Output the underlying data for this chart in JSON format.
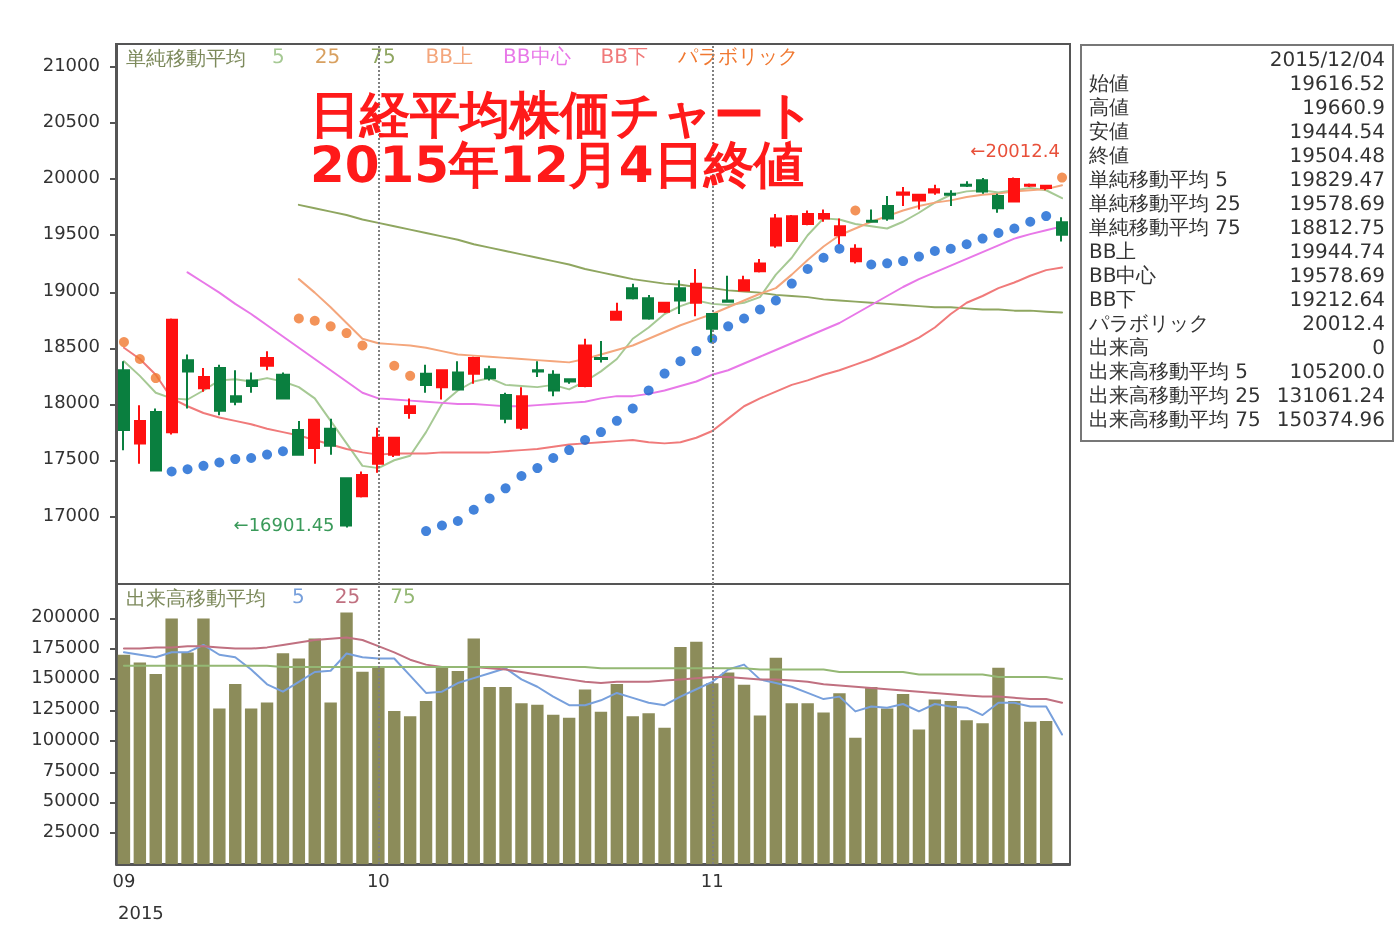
{
  "chart_data": [
    {
      "type": "candlestick",
      "title": "日経平均株価チャート",
      "subtitle": "2015年12月4日終値",
      "legend_title": "単純移動平均",
      "legend": "top left",
      "marker": "none",
      "tick_labels": "y",
      "categories": [
        "09",
        null,
        null,
        null,
        null,
        null,
        null,
        null,
        null,
        null,
        null,
        null,
        null,
        null,
        null,
        null,
        "10",
        null,
        null,
        null,
        null,
        null,
        null,
        null,
        null,
        null,
        null,
        null,
        null,
        null,
        null,
        null,
        null,
        null,
        null,
        null,
        null,
        "11",
        null,
        null,
        null,
        null,
        null,
        null,
        null,
        null,
        null,
        null,
        null,
        null,
        null,
        null,
        null,
        null,
        null,
        null,
        null,
        null,
        null,
        null
      ],
      "ohlc": [
        [
          18300,
          18380,
          17590,
          17770
        ],
        [
          17650,
          17990,
          17470,
          17850
        ],
        [
          17930,
          17960,
          17400,
          17410
        ],
        [
          17750,
          18760,
          17730,
          18750
        ],
        [
          18390,
          18440,
          17960,
          18290
        ],
        [
          18140,
          18320,
          18110,
          18240
        ],
        [
          18320,
          18350,
          17900,
          17940
        ],
        [
          18070,
          18300,
          17990,
          18020
        ],
        [
          18210,
          18280,
          18100,
          18160
        ],
        [
          18340,
          18470,
          18300,
          18410
        ],
        [
          18260,
          18280,
          18040,
          18050
        ],
        [
          17770,
          17850,
          17540,
          17550
        ],
        [
          17610,
          17870,
          17470,
          17860
        ],
        [
          17780,
          17870,
          17550,
          17630
        ],
        [
          17340,
          17350,
          16901.45,
          16920
        ],
        [
          17180,
          17400,
          17170,
          17370
        ],
        [
          17470,
          17790,
          17390,
          17700
        ],
        [
          17550,
          17710,
          17530,
          17700
        ],
        [
          17920,
          18050,
          17870,
          17980
        ],
        [
          18270,
          18350,
          18100,
          18170
        ],
        [
          18150,
          18310,
          18040,
          18300
        ],
        [
          18280,
          18380,
          18120,
          18130
        ],
        [
          18270,
          18420,
          18180,
          18410
        ],
        [
          18310,
          18340,
          18210,
          18230
        ],
        [
          18080,
          18100,
          17830,
          17870
        ],
        [
          17790,
          18150,
          17770,
          18070
        ],
        [
          18300,
          18380,
          18240,
          18290
        ],
        [
          18260,
          18300,
          18070,
          18120
        ],
        [
          18220,
          18230,
          18180,
          18200
        ],
        [
          18160,
          18580,
          18150,
          18520
        ],
        [
          18410,
          18560,
          18370,
          18400
        ],
        [
          18750,
          18900,
          18740,
          18820
        ],
        [
          19030,
          19070,
          18930,
          18940
        ],
        [
          18940,
          18970,
          18750,
          18760
        ],
        [
          18820,
          18900,
          18810,
          18900
        ],
        [
          19030,
          19100,
          18800,
          18920
        ],
        [
          18900,
          19200,
          18780,
          19070
        ],
        [
          18800,
          18800,
          18550,
          18670
        ],
        [
          18920,
          19140,
          18900,
          18910
        ],
        [
          19010,
          19140,
          19000,
          19100
        ],
        [
          19180,
          19290,
          19170,
          19250
        ],
        [
          19410,
          19690,
          19390,
          19650
        ],
        [
          19450,
          19680,
          19450,
          19670
        ],
        [
          19600,
          19720,
          19590,
          19690
        ],
        [
          19650,
          19730,
          19620,
          19690
        ],
        [
          19500,
          19650,
          19420,
          19580
        ],
        [
          19270,
          19420,
          19250,
          19380
        ],
        [
          19630,
          19730,
          19620,
          19620
        ],
        [
          19760,
          19850,
          19630,
          19650
        ],
        [
          19860,
          19930,
          19760,
          19880
        ],
        [
          19810,
          19870,
          19730,
          19860
        ],
        [
          19880,
          19950,
          19860,
          19910
        ],
        [
          19870,
          19900,
          19760,
          19860
        ],
        [
          19950,
          19980,
          19930,
          19940
        ],
        [
          19990,
          20010,
          19870,
          19890
        ],
        [
          19850,
          19870,
          19700,
          19740
        ],
        [
          19800,
          20012.4,
          19800,
          20000
        ],
        [
          19940,
          19960,
          19930,
          19950
        ],
        [
          19920,
          19950,
          19900,
          19940
        ],
        [
          19616.52,
          19660.9,
          19444.54,
          19504.48
        ]
      ],
      "colors": [
        "#0a7f3f",
        "#ff1010",
        "#0a7f3f",
        "#ff1010",
        "#0a7f3f",
        "#ff1010",
        "#0a7f3f",
        "#0a7f3f",
        "#0a7f3f",
        "#ff1010",
        "#0a7f3f",
        "#0a7f3f",
        "#ff1010",
        "#0a7f3f",
        "#0a7f3f",
        "#ff1010",
        "#ff1010",
        "#ff1010",
        "#ff1010",
        "#0a7f3f",
        "#ff1010",
        "#0a7f3f",
        "#ff1010",
        "#0a7f3f",
        "#0a7f3f",
        "#ff1010",
        "#0a7f3f",
        "#0a7f3f",
        "#0a7f3f",
        "#ff1010",
        "#0a7f3f",
        "#ff1010",
        "#0a7f3f",
        "#0a7f3f",
        "#ff1010",
        "#0a7f3f",
        "#ff1010",
        "#0a7f3f",
        "#0a7f3f",
        "#ff1010",
        "#ff1010",
        "#ff1010",
        "#ff1010",
        "#ff1010",
        "#ff1010",
        "#ff1010",
        "#ff1010",
        "#0a7f3f",
        "#0a7f3f",
        "#ff1010",
        "#ff1010",
        "#ff1010",
        "#0a7f3f",
        "#0a7f3f",
        "#0a7f3f",
        "#0a7f3f",
        "#ff1010",
        "#ff1010",
        "#ff1010",
        "#0a7f3f"
      ],
      "series": [
        {
          "type": "line",
          "name": "5",
          "color": "#a6c994",
          "values": [
            18380,
            18250,
            18100,
            18050,
            18040,
            18120,
            18210,
            18220,
            18200,
            18230,
            18200,
            18150,
            18050,
            17850,
            17650,
            17450,
            17430,
            17500,
            17540,
            17750,
            18000,
            18120,
            18200,
            18230,
            18170,
            18160,
            18150,
            18170,
            18130,
            18200,
            18290,
            18400,
            18580,
            18680,
            18800,
            18870,
            18920,
            18890,
            18880,
            18900,
            18950,
            19150,
            19300,
            19500,
            19650,
            19640,
            19600,
            19580,
            19560,
            19620,
            19700,
            19790,
            19860,
            19890,
            19900,
            19880,
            19900,
            19920,
            19900,
            19829.47
          ]
        },
        {
          "type": "line",
          "name": "25",
          "color": "#d8a060",
          "values": [
            null,
            null,
            null,
            null,
            null,
            null,
            null,
            null,
            null,
            null,
            null,
            null,
            null,
            null,
            null,
            null,
            null,
            null,
            null,
            null,
            null,
            null,
            null,
            null,
            null,
            null,
            null,
            null,
            null,
            null,
            null,
            null,
            null,
            null,
            null,
            null,
            null,
            null,
            null,
            null,
            null,
            null,
            null,
            null,
            null,
            null,
            null,
            null,
            null,
            null,
            null,
            null,
            null,
            null,
            null,
            null,
            null,
            null,
            null,
            null
          ]
        },
        {
          "type": "line",
          "name": "75",
          "color": "#8fa660",
          "values": [
            null,
            null,
            null,
            null,
            null,
            null,
            null,
            null,
            null,
            null,
            null,
            19770,
            19740,
            19710,
            19680,
            19640,
            19610,
            19580,
            19550,
            19520,
            19490,
            19460,
            19420,
            19390,
            19360,
            19330,
            19300,
            19270,
            19240,
            19200,
            19170,
            19140,
            19110,
            19090,
            19070,
            19060,
            19040,
            19030,
            19010,
            19000,
            18990,
            18970,
            18960,
            18950,
            18930,
            18920,
            18910,
            18900,
            18890,
            18880,
            18870,
            18860,
            18860,
            18850,
            18840,
            18840,
            18830,
            18830,
            18820,
            18812.75
          ]
        },
        {
          "type": "line",
          "name": "BB上",
          "color": "#f4a67c",
          "values": [
            null,
            null,
            null,
            null,
            null,
            null,
            null,
            null,
            null,
            null,
            null,
            19110,
            18990,
            18860,
            18720,
            18580,
            18540,
            18530,
            18520,
            18500,
            18470,
            18440,
            18430,
            18420,
            18410,
            18400,
            18390,
            18380,
            18370,
            18400,
            18440,
            18480,
            18520,
            18580,
            18640,
            18700,
            18750,
            18800,
            18860,
            18920,
            18980,
            19030,
            19150,
            19280,
            19400,
            19500,
            19560,
            19620,
            19670,
            19720,
            19760,
            19790,
            19810,
            19840,
            19860,
            19870,
            19890,
            19900,
            19910,
            19944.74
          ]
        },
        {
          "type": "line",
          "name": "BB中心",
          "color": "#e878e8",
          "values": [
            null,
            null,
            null,
            null,
            19170,
            19080,
            18990,
            18890,
            18800,
            18700,
            18600,
            18500,
            18400,
            18300,
            18200,
            18100,
            18050,
            18040,
            18030,
            18020,
            18010,
            18000,
            18000,
            17990,
            17980,
            17980,
            17990,
            18000,
            18010,
            18020,
            18050,
            18070,
            18070,
            18090,
            18120,
            18160,
            18200,
            18260,
            18300,
            18360,
            18420,
            18480,
            18540,
            18600,
            18660,
            18720,
            18800,
            18880,
            18960,
            19040,
            19110,
            19170,
            19230,
            19290,
            19350,
            19410,
            19470,
            19510,
            19545,
            19578.69
          ]
        },
        {
          "type": "line",
          "name": "BB下",
          "color": "#f07a7a",
          "values": [
            18500,
            18400,
            18260,
            18050,
            17980,
            17920,
            17880,
            17850,
            17820,
            17780,
            17750,
            17720,
            17680,
            17640,
            17600,
            17570,
            17550,
            17560,
            17560,
            17560,
            17570,
            17570,
            17570,
            17570,
            17580,
            17590,
            17600,
            17620,
            17640,
            17650,
            17660,
            17670,
            17680,
            17660,
            17650,
            17660,
            17700,
            17760,
            17870,
            17980,
            18050,
            18110,
            18170,
            18210,
            18260,
            18300,
            18350,
            18400,
            18460,
            18520,
            18590,
            18680,
            18800,
            18900,
            18960,
            19030,
            19080,
            19140,
            19190,
            19212.64
          ]
        },
        {
          "type": "scatter",
          "name": "パラボリック",
          "color": "#f07830",
          "marker": "circle",
          "values": [
            18550,
            18400,
            18230,
            17400,
            17420,
            17450,
            17480,
            17510,
            17520,
            17550,
            17580,
            18760,
            18740,
            18690,
            18630,
            18520,
            null,
            18340,
            18250,
            16870,
            16920,
            16960,
            17060,
            17160,
            17250,
            17360,
            17430,
            17520,
            17590,
            17680,
            17750,
            17850,
            17960,
            18120,
            18270,
            18380,
            18470,
            18580,
            18690,
            18760,
            18840,
            18920,
            19070,
            19200,
            19300,
            19380,
            19720,
            19240,
            19250,
            19270,
            19310,
            19360,
            19380,
            19420,
            19470,
            19520,
            19560,
            19620,
            19670,
            20012.4
          ],
          "colors": [
            "#f07830",
            "#f07830",
            "#f07830",
            "#1464d2",
            "#1464d2",
            "#1464d2",
            "#1464d2",
            "#1464d2",
            "#1464d2",
            "#1464d2",
            "#1464d2",
            "#f07830",
            "#f07830",
            "#f07830",
            "#f07830",
            "#f07830",
            "#f07830",
            "#f07830",
            "#f07830",
            "#1464d2",
            "#1464d2",
            "#1464d2",
            "#1464d2",
            "#1464d2",
            "#1464d2",
            "#1464d2",
            "#1464d2",
            "#1464d2",
            "#1464d2",
            "#1464d2",
            "#1464d2",
            "#1464d2",
            "#1464d2",
            "#1464d2",
            "#1464d2",
            "#1464d2",
            "#1464d2",
            "#1464d2",
            "#1464d2",
            "#1464d2",
            "#1464d2",
            "#1464d2",
            "#1464d2",
            "#1464d2",
            "#1464d2",
            "#1464d2",
            "#f07830",
            "#1464d2",
            "#1464d2",
            "#1464d2",
            "#1464d2",
            "#1464d2",
            "#1464d2",
            "#1464d2",
            "#1464d2",
            "#1464d2",
            "#1464d2",
            "#1464d2",
            "#1464d2",
            "#f07830"
          ]
        }
      ],
      "ylim": [
        16400,
        21200
      ],
      "yticks": [
        17000,
        17500,
        18000,
        18500,
        19000,
        19500,
        20000,
        20500,
        21000
      ],
      "ref_lines": [
        {
          "axis": "x",
          "value": "10",
          "color": "#808080",
          "line_style": "dotted"
        },
        {
          "axis": "x",
          "value": "11",
          "color": "#808080",
          "line_style": "dotted"
        }
      ],
      "annotations": [
        "2015/12/04",
        "始値",
        "19616.52",
        "高値",
        "19660.9",
        "安値",
        "19444.54",
        "終値",
        "19504.48",
        "単純移動平均 5",
        "19829.47",
        "単純移動平均 25",
        "19578.69",
        "単純移動平均 75",
        "18812.75",
        "BB上",
        "19944.74",
        "BB中心",
        "19578.69",
        "BB下",
        "19212.64",
        "パラボリック",
        "20012.4",
        "出来高",
        "0",
        "出来高移動平均 5",
        "105200.0",
        "出来高移動平均 25",
        "131061.24",
        "出来高移動平均 75",
        "150374.96",
        "←16901.45",
        "←20012.4"
      ]
    },
    {
      "type": "bar",
      "legend_title": "出来高移動平均",
      "legend": "top left",
      "xlabel": "2015",
      "categories": [
        "09",
        null,
        null,
        null,
        null,
        null,
        null,
        null,
        null,
        null,
        null,
        null,
        null,
        null,
        null,
        null,
        "10",
        null,
        null,
        null,
        null,
        null,
        null,
        null,
        null,
        null,
        null,
        null,
        null,
        null,
        null,
        null,
        null,
        null,
        null,
        null,
        null,
        "11",
        null,
        null,
        null,
        null,
        null,
        null,
        null,
        null,
        null,
        null,
        null,
        null,
        null,
        null,
        null,
        null,
        null,
        null,
        null,
        null,
        null,
        null
      ],
      "series": [
        {
          "color": "#8c8c5a",
          "values": [
            170000,
            163750,
            154375,
            199375,
            171875,
            199375,
            126250,
            146250,
            126250,
            131250,
            171250,
            166875,
            183125,
            131250,
            204375,
            156250,
            160000,
            124375,
            120000,
            132500,
            160625,
            156875,
            183125,
            143750,
            143750,
            130625,
            129375,
            121250,
            118750,
            141875,
            123750,
            146250,
            120000,
            122500,
            110625,
            176250,
            180625,
            146875,
            155625,
            145625,
            120625,
            167500,
            130625,
            130625,
            123125,
            138750,
            102500,
            143750,
            126250,
            138125,
            109375,
            133750,
            132500,
            116875,
            114375,
            159375,
            132500,
            115625,
            116250,
            0
          ]
        },
        {
          "type": "line",
          "name": "5",
          "color": "#78a0dc",
          "values": [
            172000,
            170000,
            168000,
            172000,
            172000,
            178000,
            170000,
            168000,
            158000,
            146000,
            140000,
            148000,
            156000,
            157000,
            171000,
            168000,
            167000,
            167000,
            153000,
            139000,
            140000,
            147000,
            151000,
            155000,
            159000,
            150000,
            144000,
            136000,
            129000,
            129000,
            133000,
            139000,
            135000,
            131000,
            129000,
            136000,
            142000,
            148000,
            158000,
            162000,
            150000,
            147000,
            144000,
            139000,
            134000,
            136000,
            124000,
            128000,
            127000,
            130000,
            124000,
            130000,
            128000,
            127000,
            121000,
            131000,
            131000,
            128000,
            128000,
            105200.0
          ]
        },
        {
          "type": "line",
          "name": "25",
          "color": "#c07080",
          "values": [
            175000,
            175000,
            176000,
            176000,
            177000,
            177000,
            176000,
            175000,
            175000,
            176000,
            178000,
            180000,
            182000,
            183000,
            184000,
            182000,
            177000,
            172000,
            166000,
            162000,
            160000,
            160000,
            160000,
            159000,
            158000,
            156000,
            154000,
            152000,
            150000,
            148000,
            147000,
            148000,
            148000,
            148000,
            149000,
            150000,
            151000,
            152000,
            152000,
            151000,
            150000,
            150000,
            149000,
            148000,
            146000,
            145000,
            144000,
            143000,
            142000,
            141000,
            140000,
            139000,
            138000,
            137000,
            136000,
            136000,
            135000,
            134000,
            134000,
            131061.24
          ]
        },
        {
          "type": "line",
          "name": "75",
          "color": "#94b874",
          "values": [
            161000,
            161000,
            161000,
            161000,
            161000,
            161000,
            161000,
            161000,
            161000,
            161000,
            160000,
            160000,
            160000,
            160000,
            160000,
            160000,
            160000,
            160000,
            160000,
            160000,
            160000,
            160000,
            160000,
            160000,
            160000,
            160000,
            160000,
            160000,
            160000,
            160000,
            159000,
            159000,
            159000,
            159000,
            159000,
            159000,
            159000,
            159000,
            159000,
            159000,
            158000,
            158000,
            158000,
            158000,
            158000,
            156000,
            156000,
            156000,
            156000,
            156000,
            154000,
            154000,
            154000,
            154000,
            154000,
            152000,
            152000,
            152000,
            152000,
            150374.96
          ]
        }
      ],
      "marker": "none",
      "ylim": [
        0,
        227500
      ],
      "yticks": [
        25000,
        50000,
        75000,
        100000,
        125000,
        150000,
        175000,
        200000
      ],
      "ref_lines": [
        {
          "axis": "x",
          "value": "10",
          "color": "#808080",
          "line_style": "dotted"
        },
        {
          "axis": "x",
          "value": "11",
          "color": "#808080",
          "line_style": "dotted"
        }
      ]
    }
  ]
}
